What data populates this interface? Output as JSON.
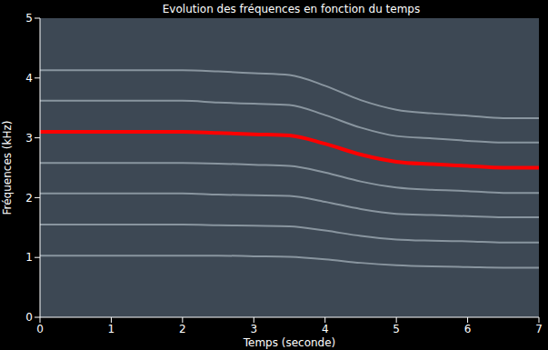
{
  "chart_data": {
    "type": "line",
    "title": "Evolution des fréquences en fonction du temps",
    "x_label": "Temps (seconde)",
    "y_label": "Fréquences (kHz)",
    "x": [
      0,
      0.5,
      1,
      1.5,
      2,
      2.5,
      3,
      3.5,
      4,
      4.5,
      5,
      5.5,
      6,
      6.5,
      7
    ],
    "xlim": [
      0,
      7
    ],
    "xticks": [
      0,
      1,
      2,
      3,
      4,
      5,
      6,
      7
    ],
    "ylim": [
      0,
      5
    ],
    "yticks": [
      0,
      1,
      2,
      3,
      4,
      5
    ],
    "series": [
      {
        "color": "#c9d6dd",
        "values": [
          1.03,
          1.03,
          1.03,
          1.03,
          1.03,
          1.03,
          1.02,
          1.01,
          0.97,
          0.91,
          0.87,
          0.85,
          0.84,
          0.83,
          0.83
        ]
      },
      {
        "color": "#c9d6dd",
        "values": [
          1.55,
          1.55,
          1.55,
          1.55,
          1.55,
          1.54,
          1.53,
          1.52,
          1.45,
          1.36,
          1.3,
          1.28,
          1.27,
          1.25,
          1.25
        ]
      },
      {
        "color": "#c9d6dd",
        "values": [
          2.07,
          2.07,
          2.07,
          2.07,
          2.07,
          2.05,
          2.04,
          2.03,
          1.93,
          1.81,
          1.73,
          1.71,
          1.69,
          1.67,
          1.67
        ]
      },
      {
        "color": "#c9d6dd",
        "values": [
          2.58,
          2.58,
          2.58,
          2.58,
          2.58,
          2.57,
          2.55,
          2.53,
          2.42,
          2.27,
          2.17,
          2.13,
          2.11,
          2.08,
          2.08
        ]
      },
      {
        "color": "#c9d6dd",
        "values": [
          3.62,
          3.62,
          3.62,
          3.62,
          3.62,
          3.59,
          3.57,
          3.55,
          3.38,
          3.17,
          3.03,
          2.99,
          2.95,
          2.92,
          2.92
        ]
      },
      {
        "color": "#c9d6dd",
        "values": [
          4.13,
          4.13,
          4.13,
          4.13,
          4.13,
          4.11,
          4.08,
          4.05,
          3.87,
          3.63,
          3.47,
          3.41,
          3.37,
          3.33,
          3.33
        ]
      },
      {
        "color": "#ff0000",
        "values": [
          3.1,
          3.1,
          3.1,
          3.1,
          3.1,
          3.08,
          3.06,
          3.04,
          2.9,
          2.72,
          2.6,
          2.56,
          2.53,
          2.5,
          2.5
        ]
      }
    ]
  }
}
